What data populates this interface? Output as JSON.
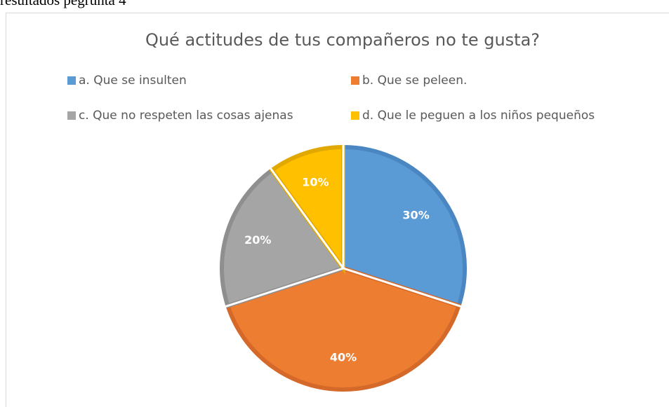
{
  "page_heading": "resultados pegrunta 4",
  "chart_data": {
    "type": "pie",
    "title": "Qué actitudes de tus compañeros no te gusta?",
    "categories": [
      "a. Que se insulten",
      "b. Que se peleen.",
      "c. Que no respeten las cosas ajenas",
      "d. Que le peguen a los niños pequeños"
    ],
    "values": [
      30,
      40,
      20,
      10
    ],
    "value_labels": [
      "30%",
      "40%",
      "20%",
      "10%"
    ],
    "colors": [
      "#5b9bd5",
      "#ed7d31",
      "#a5a5a5",
      "#ffc000"
    ],
    "border_colors": [
      "#4a87c2",
      "#d4692a",
      "#8f8f8f",
      "#e0a800"
    ],
    "legend": "top"
  }
}
